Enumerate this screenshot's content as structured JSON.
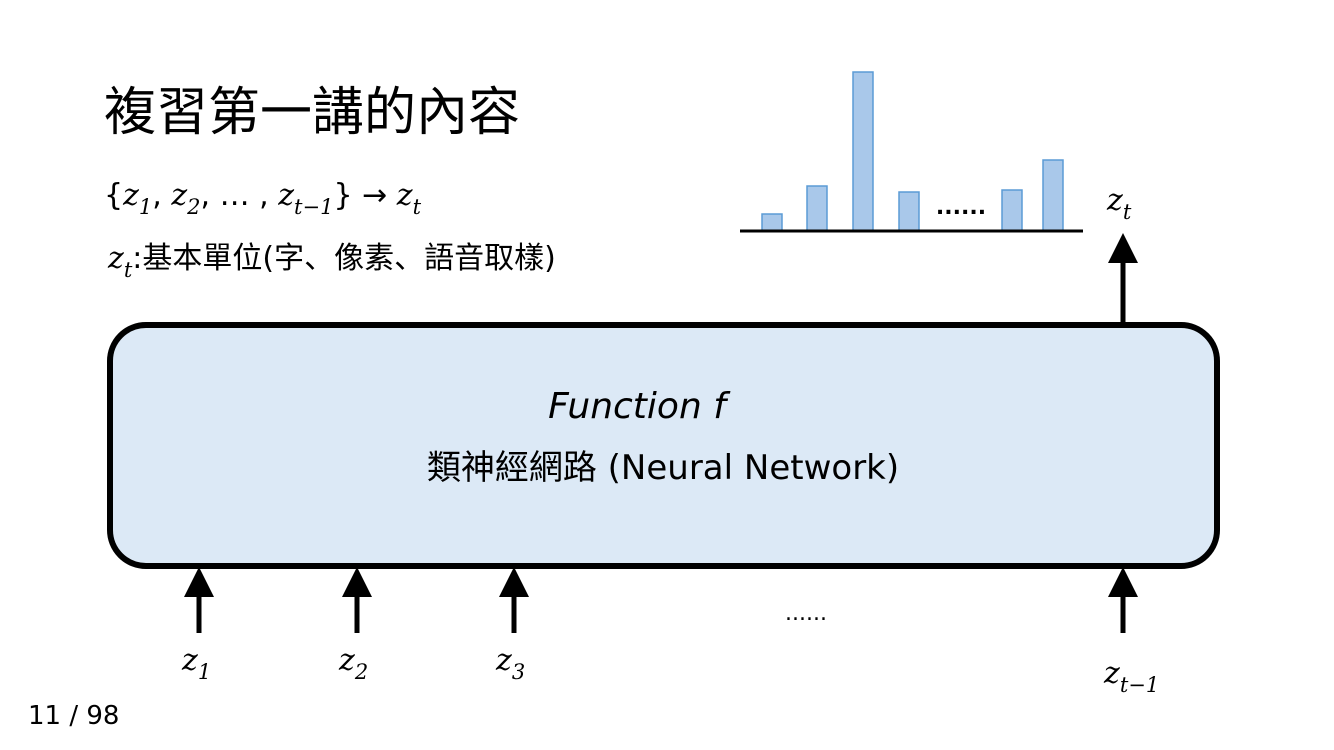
{
  "title": "複習第一講的內容",
  "formula": [
    {
      "text": "{"
    },
    {
      "var": "z",
      "sub": "1"
    },
    {
      "text": ", "
    },
    {
      "var": "z",
      "sub": "2"
    },
    {
      "text": ", … , "
    },
    {
      "var": "z",
      "sub": "t−1"
    },
    {
      "text": "} → "
    },
    {
      "var": "z",
      "sub": "t"
    }
  ],
  "definition": [
    {
      "var": "z",
      "sub": "t"
    },
    {
      "text": ":基本單位(字、像素、語音取樣)"
    }
  ],
  "distribution": {
    "ellipsis": "......",
    "label": [
      {
        "var": "z",
        "sub": "t"
      }
    ]
  },
  "box": {
    "function": "Function f",
    "name": "類神經網路 (Neural Network)"
  },
  "inputs": [
    [
      {
        "var": "z",
        "sub": "1"
      }
    ],
    [
      {
        "var": "z",
        "sub": "2"
      }
    ],
    [
      {
        "var": "z",
        "sub": "3"
      }
    ],
    [
      {
        "var": "z",
        "sub": "t−1"
      }
    ]
  ],
  "inputs_ellipsis": "......",
  "page_number": "11 / 98"
}
